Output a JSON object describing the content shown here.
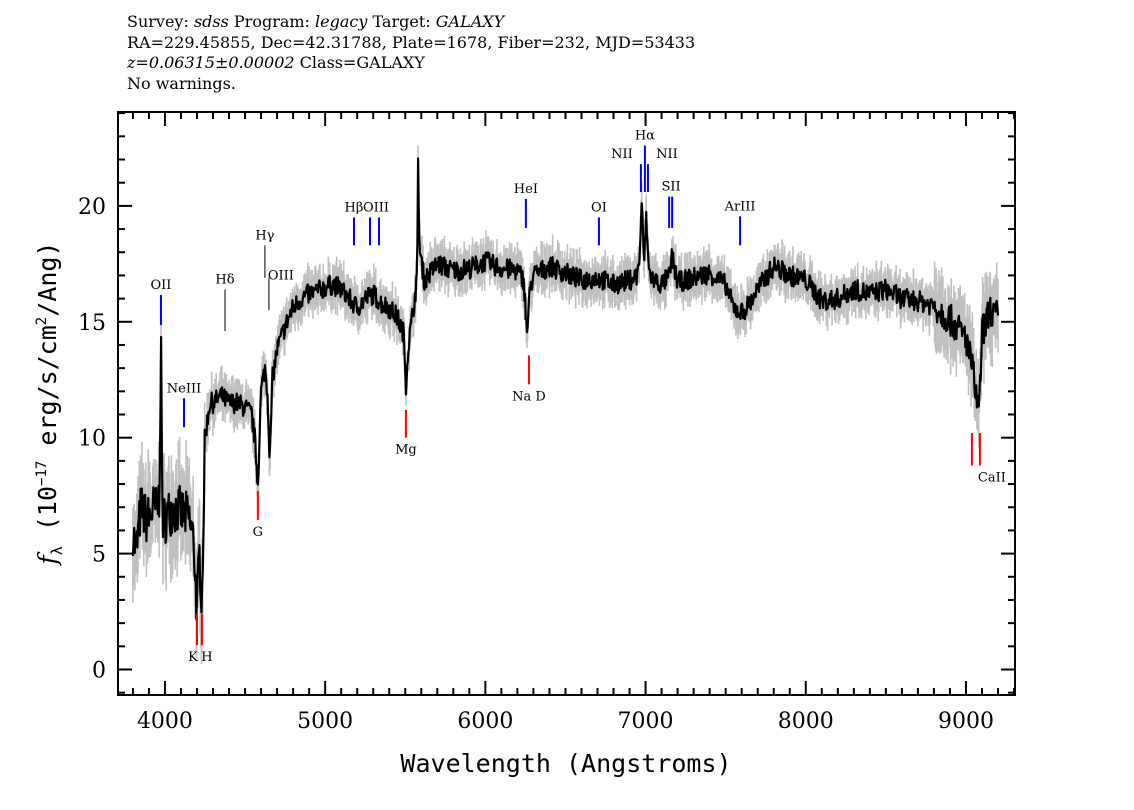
{
  "header": {
    "line1": {
      "survey_label": "Survey: ",
      "survey": "sdss",
      "program_label": " Program: ",
      "program": "legacy",
      "target_label": " Target: ",
      "target": "GALAXY"
    },
    "line2": "RA=229.45855, Dec=42.31788, Plate=1678, Fiber=232, MJD=53433",
    "line3": {
      "redshift": "z=0.06315±0.00002",
      "class": " Class=GALAXY"
    },
    "line4": "No warnings."
  },
  "chart_data": {
    "type": "line",
    "xlabel": "Wavelength (Angstroms)",
    "ylabel": "f_λ (10^-17 erg/s/cm^2/Ang)",
    "ylabel_parts": {
      "f": "f",
      "sub": "λ",
      "pre": " (10",
      "sup": "−17",
      "mid": " erg/s/cm",
      "sup2": "2",
      "post": "/Ang)"
    },
    "xlim": [
      3707,
      9306
    ],
    "ylim": [
      -1.1,
      24.05
    ],
    "xticks": [
      4000,
      5000,
      6000,
      7000,
      8000,
      9000
    ],
    "yticks": [
      0,
      5,
      10,
      15,
      20
    ],
    "grid": false,
    "colors": {
      "flux": "#000000",
      "error_band": "#c0c0c0",
      "emission": "#0000ff",
      "absorption": "#ff0000",
      "other": "#000000"
    },
    "spectrum": {
      "x": [
        3800,
        3820,
        3850,
        3880,
        3900,
        3930,
        3950,
        3965,
        3975,
        3985,
        4000,
        4050,
        4100,
        4150,
        4180,
        4200,
        4215,
        4231,
        4250,
        4280,
        4300,
        4350,
        4400,
        4450,
        4500,
        4540,
        4560,
        4580,
        4600,
        4624,
        4640,
        4655,
        4670,
        4700,
        4750,
        4800,
        4850,
        4900,
        4950,
        5000,
        5050,
        5100,
        5150,
        5200,
        5250,
        5300,
        5350,
        5400,
        5450,
        5490,
        5504,
        5520,
        5550,
        5575,
        5580,
        5590,
        5620,
        5700,
        5800,
        5900,
        6000,
        6100,
        6200,
        6240,
        6260,
        6280,
        6300,
        6400,
        6500,
        6600,
        6700,
        6800,
        6900,
        6950,
        6965,
        6975,
        6990,
        7005,
        7020,
        7050,
        7100,
        7150,
        7165,
        7200,
        7300,
        7400,
        7500,
        7550,
        7600,
        7650,
        7700,
        7800,
        7900,
        8000,
        8100,
        8200,
        8300,
        8400,
        8500,
        8600,
        8700,
        8800,
        8900,
        9000,
        9040,
        9070,
        9082,
        9100,
        9150,
        9200
      ],
      "y": [
        6,
        5,
        7,
        6.5,
        6.5,
        7,
        6.8,
        7.5,
        14,
        6.5,
        6.5,
        7,
        6.8,
        6.5,
        5.5,
        2.5,
        5,
        3,
        10,
        11.5,
        11.5,
        11.8,
        11.5,
        11.5,
        11.3,
        11,
        10,
        8,
        12,
        13,
        12,
        9,
        12.5,
        13.8,
        14.8,
        15.6,
        16,
        16.2,
        16.3,
        16.5,
        16.6,
        16.4,
        16,
        15.6,
        16,
        16.2,
        15.8,
        15.6,
        15.2,
        14.5,
        12.3,
        14,
        15.5,
        17,
        22,
        18,
        16.8,
        17.5,
        17.2,
        17.3,
        17.6,
        17.3,
        17.2,
        16.8,
        14.5,
        16.5,
        17,
        17.4,
        17.1,
        16.8,
        16.9,
        16.6,
        16.8,
        17,
        18,
        20.3,
        17.5,
        19.5,
        17.2,
        16.8,
        16.6,
        17,
        17.8,
        16.7,
        16.9,
        17.1,
        16.6,
        15.6,
        15.4,
        15.8,
        16.4,
        17.4,
        17,
        16.8,
        15.9,
        16,
        16.4,
        16.2,
        16.4,
        16,
        15.9,
        15.7,
        15.1,
        14.3,
        13,
        11.5,
        11,
        14.5,
        15.5,
        15.2
      ]
    },
    "lines": [
      {
        "label": "OII",
        "wavelength": 3975,
        "type": "emission",
        "flux_range": [
          14.86,
          16.16
        ]
      },
      {
        "label": "NeIII",
        "wavelength": 4119,
        "type": "emission",
        "flux_range": [
          10.45,
          11.7
        ]
      },
      {
        "label": "Hδ",
        "wavelength": 4375,
        "type": "other",
        "flux_range": [
          14.6,
          16.4
        ]
      },
      {
        "label": "Hγ",
        "wavelength": 4624,
        "type": "other",
        "flux_range": [
          16.9,
          18.3
        ]
      },
      {
        "label": "OIII",
        "wavelength": 4649,
        "type": "other",
        "flux_range": [
          15.5,
          16.9
        ]
      },
      {
        "label": "Hβ",
        "wavelength": 5180,
        "type": "emission",
        "flux_range": [
          18.3,
          19.5
        ]
      },
      {
        "label": "",
        "wavelength": 5280,
        "type": "emission",
        "flux_range": [
          18.3,
          19.5
        ]
      },
      {
        "label": "OIII",
        "wavelength": 5336,
        "type": "emission",
        "flux_range": [
          18.3,
          19.5
        ]
      },
      {
        "label": "HeI",
        "wavelength": 6253,
        "type": "emission",
        "flux_range": [
          19.05,
          20.3
        ]
      },
      {
        "label": "OI",
        "wavelength": 6709,
        "type": "emission",
        "flux_range": [
          18.3,
          19.5
        ]
      },
      {
        "label": "NII",
        "wavelength": 6971,
        "type": "emission",
        "flux_range": [
          20.6,
          21.8
        ]
      },
      {
        "label": "Hα",
        "wavelength": 6996,
        "type": "emission",
        "flux_range": [
          20.6,
          22.6
        ]
      },
      {
        "label": "NII",
        "wavelength": 7015,
        "type": "emission",
        "flux_range": [
          20.6,
          21.8
        ]
      },
      {
        "label": "SII",
        "wavelength": 7147,
        "type": "emission",
        "flux_range": [
          19.05,
          20.4
        ]
      },
      {
        "label": "",
        "wavelength": 7166,
        "type": "emission",
        "flux_range": [
          19.05,
          20.4
        ]
      },
      {
        "label": "ArIII",
        "wavelength": 7590,
        "type": "emission",
        "flux_range": [
          18.3,
          19.55
        ]
      },
      {
        "label": "K",
        "wavelength": 4200,
        "type": "absorption",
        "flux_range": [
          1.05,
          2.4
        ]
      },
      {
        "label": "H",
        "wavelength": 4231,
        "type": "absorption",
        "flux_range": [
          1.05,
          2.4
        ]
      },
      {
        "label": "G",
        "wavelength": 4580,
        "type": "absorption",
        "flux_range": [
          6.45,
          7.7
        ]
      },
      {
        "label": "Mg",
        "wavelength": 5504,
        "type": "absorption",
        "flux_range": [
          10.0,
          11.2
        ]
      },
      {
        "label": "Na D",
        "wavelength": 6272,
        "type": "absorption",
        "flux_range": [
          12.3,
          13.55
        ]
      },
      {
        "label": "CaII",
        "wavelength": 9037,
        "type": "absorption",
        "flux_range": [
          8.8,
          10.2
        ]
      },
      {
        "label": "",
        "wavelength": 9087,
        "type": "absorption",
        "flux_range": [
          8.8,
          10.2
        ]
      }
    ]
  }
}
